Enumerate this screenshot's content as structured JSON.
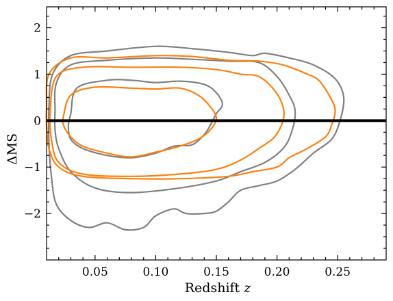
{
  "chart_data": {
    "type": "contour",
    "xlabel": "Redshift ",
    "xlabel_var": "z",
    "ylabel": "ΔMS",
    "xlim": [
      0.01,
      0.29
    ],
    "ylim": [
      -3.0,
      2.45
    ],
    "xticks": [
      0.05,
      0.1,
      0.15,
      0.2,
      0.25
    ],
    "xtick_labels": [
      "0.05",
      "0.10",
      "0.15",
      "0.20",
      "0.25"
    ],
    "yticks": [
      -2,
      -1,
      0,
      1,
      2
    ],
    "ytick_labels": [
      "−2",
      "−1",
      "0",
      "1",
      "2"
    ],
    "reference_line": {
      "y": 0,
      "color": "#000000"
    },
    "grid": false,
    "series": [
      {
        "color": "#808080",
        "contours": [
          [
            [
              0.03,
              0.15
            ],
            [
              0.035,
              0.7
            ],
            [
              0.06,
              0.87
            ],
            [
              0.08,
              0.87
            ],
            [
              0.1,
              0.82
            ],
            [
              0.12,
              0.85
            ],
            [
              0.14,
              0.78
            ],
            [
              0.15,
              0.6
            ],
            [
              0.155,
              0.35
            ],
            [
              0.15,
              0.15
            ],
            [
              0.145,
              -0.1
            ],
            [
              0.14,
              -0.3
            ],
            [
              0.13,
              -0.52
            ],
            [
              0.115,
              -0.55
            ],
            [
              0.1,
              -0.7
            ],
            [
              0.08,
              -0.8
            ],
            [
              0.06,
              -0.75
            ],
            [
              0.04,
              -0.6
            ],
            [
              0.03,
              -0.4
            ],
            [
              0.028,
              -0.1
            ]
          ],
          [
            [
              0.017,
              0.2
            ],
            [
              0.018,
              0.8
            ],
            [
              0.03,
              1.2
            ],
            [
              0.06,
              1.3
            ],
            [
              0.1,
              1.35
            ],
            [
              0.13,
              1.32
            ],
            [
              0.16,
              1.28
            ],
            [
              0.185,
              1.25
            ],
            [
              0.2,
              0.95
            ],
            [
              0.21,
              0.55
            ],
            [
              0.215,
              0.2
            ],
            [
              0.212,
              -0.25
            ],
            [
              0.205,
              -0.6
            ],
            [
              0.19,
              -0.9
            ],
            [
              0.17,
              -1.1
            ],
            [
              0.15,
              -1.3
            ],
            [
              0.12,
              -1.45
            ],
            [
              0.08,
              -1.55
            ],
            [
              0.05,
              -1.45
            ],
            [
              0.03,
              -1.1
            ],
            [
              0.02,
              -0.6
            ],
            [
              0.017,
              -0.2
            ]
          ],
          [
            [
              0.012,
              0.3
            ],
            [
              0.015,
              1.0
            ],
            [
              0.03,
              1.4
            ],
            [
              0.06,
              1.5
            ],
            [
              0.1,
              1.6
            ],
            [
              0.13,
              1.55
            ],
            [
              0.16,
              1.47
            ],
            [
              0.18,
              1.4
            ],
            [
              0.19,
              1.45
            ],
            [
              0.21,
              1.35
            ],
            [
              0.23,
              1.2
            ],
            [
              0.248,
              0.9
            ],
            [
              0.255,
              0.5
            ],
            [
              0.252,
              0.0
            ],
            [
              0.245,
              -0.4
            ],
            [
              0.23,
              -0.7
            ],
            [
              0.215,
              -1.05
            ],
            [
              0.2,
              -1.3
            ],
            [
              0.185,
              -1.4
            ],
            [
              0.17,
              -1.5
            ],
            [
              0.16,
              -1.75
            ],
            [
              0.15,
              -1.95
            ],
            [
              0.14,
              -2.0
            ],
            [
              0.125,
              -2.0
            ],
            [
              0.115,
              -1.9
            ],
            [
              0.1,
              -2.05
            ],
            [
              0.09,
              -2.3
            ],
            [
              0.075,
              -2.35
            ],
            [
              0.06,
              -2.2
            ],
            [
              0.045,
              -2.3
            ],
            [
              0.03,
              -2.15
            ],
            [
              0.018,
              -1.8
            ],
            [
              0.014,
              -1.2
            ],
            [
              0.012,
              -0.5
            ]
          ]
        ]
      },
      {
        "color": "#ff7f0e",
        "contours": [
          [
            [
              0.024,
              0.1
            ],
            [
              0.03,
              0.55
            ],
            [
              0.05,
              0.72
            ],
            [
              0.08,
              0.7
            ],
            [
              0.1,
              0.68
            ],
            [
              0.12,
              0.7
            ],
            [
              0.135,
              0.55
            ],
            [
              0.145,
              0.3
            ],
            [
              0.15,
              0.05
            ],
            [
              0.145,
              -0.2
            ],
            [
              0.135,
              -0.4
            ],
            [
              0.12,
              -0.55
            ],
            [
              0.1,
              -0.68
            ],
            [
              0.08,
              -0.78
            ],
            [
              0.06,
              -0.7
            ],
            [
              0.04,
              -0.55
            ],
            [
              0.03,
              -0.35
            ],
            [
              0.024,
              -0.1
            ]
          ],
          [
            [
              0.013,
              0.2
            ],
            [
              0.018,
              0.95
            ],
            [
              0.04,
              1.15
            ],
            [
              0.08,
              1.15
            ],
            [
              0.12,
              1.15
            ],
            [
              0.15,
              1.1
            ],
            [
              0.17,
              1.0
            ],
            [
              0.185,
              0.95
            ],
            [
              0.198,
              0.65
            ],
            [
              0.205,
              0.3
            ],
            [
              0.205,
              0.0
            ],
            [
              0.198,
              -0.35
            ],
            [
              0.185,
              -0.6
            ],
            [
              0.17,
              -0.85
            ],
            [
              0.15,
              -1.05
            ],
            [
              0.12,
              -1.15
            ],
            [
              0.08,
              -1.2
            ],
            [
              0.04,
              -1.15
            ],
            [
              0.02,
              -0.9
            ],
            [
              0.014,
              -0.4
            ]
          ],
          [
            [
              0.01,
              0.3
            ],
            [
              0.012,
              1.0
            ],
            [
              0.03,
              1.35
            ],
            [
              0.06,
              1.35
            ],
            [
              0.1,
              1.4
            ],
            [
              0.13,
              1.38
            ],
            [
              0.16,
              1.3
            ],
            [
              0.185,
              1.28
            ],
            [
              0.205,
              1.2
            ],
            [
              0.225,
              1.0
            ],
            [
              0.235,
              0.85
            ],
            [
              0.245,
              0.45
            ],
            [
              0.248,
              0.2
            ],
            [
              0.245,
              -0.1
            ],
            [
              0.24,
              -0.35
            ],
            [
              0.225,
              -0.6
            ],
            [
              0.21,
              -0.8
            ],
            [
              0.2,
              -1.0
            ],
            [
              0.18,
              -1.1
            ],
            [
              0.16,
              -1.2
            ],
            [
              0.12,
              -1.25
            ],
            [
              0.08,
              -1.25
            ],
            [
              0.04,
              -1.2
            ],
            [
              0.02,
              -1.0
            ],
            [
              0.012,
              -0.6
            ],
            [
              0.01,
              -0.1
            ]
          ]
        ]
      }
    ]
  }
}
